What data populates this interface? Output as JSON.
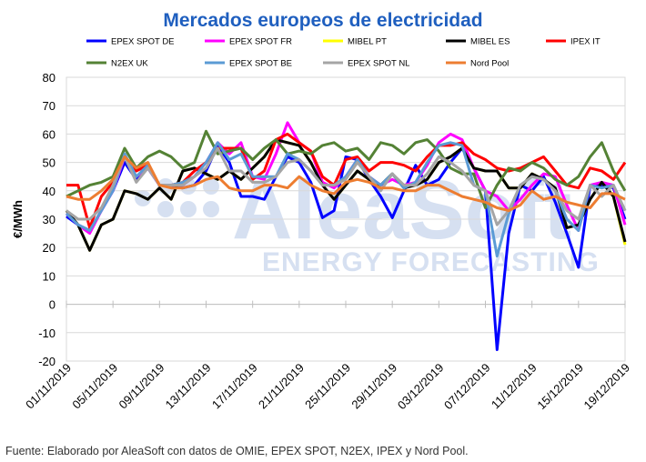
{
  "chart_data": {
    "type": "line",
    "title": "Mercados europeos de electricidad",
    "ylabel": "€/MWh",
    "xlabel": "",
    "ylim": [
      -20,
      80
    ],
    "yticks": [
      -20,
      -10,
      0,
      10,
      20,
      30,
      40,
      50,
      60,
      70,
      80
    ],
    "grid": true,
    "legend_position": "top",
    "x_start": "01/11/2019",
    "x_end": "19/12/2019",
    "x_tick_labels": [
      "01/11/2019",
      "05/11/2019",
      "09/11/2019",
      "13/11/2019",
      "17/11/2019",
      "21/11/2019",
      "25/11/2019",
      "29/11/2019",
      "03/12/2019",
      "07/12/2019",
      "11/12/2019",
      "15/12/2019",
      "19/12/2019"
    ],
    "series": [
      {
        "name": "EPEX SPOT DE",
        "color": "#0000ff",
        "values": [
          31,
          28,
          26,
          33,
          40,
          50,
          44,
          48,
          42,
          42,
          41,
          42,
          47,
          56,
          50,
          38,
          38,
          37,
          45,
          52,
          50,
          43,
          30.5,
          33,
          52,
          51,
          44,
          38,
          30.5,
          40,
          49,
          42,
          44,
          50,
          55,
          48,
          40,
          -16,
          25,
          42,
          40,
          45,
          36,
          25,
          13,
          42,
          42,
          41,
          30
        ]
      },
      {
        "name": "EPEX SPOT FR",
        "color": "#ff00ff",
        "values": [
          32,
          28,
          25,
          33,
          40,
          52,
          45,
          48,
          42,
          42,
          42,
          45,
          50,
          57,
          53,
          57,
          45,
          44,
          53,
          64,
          57,
          54,
          43,
          41,
          45,
          51,
          45,
          42,
          44,
          42,
          43,
          49,
          57,
          60,
          58,
          48,
          40,
          38,
          33,
          37,
          42,
          46,
          45,
          35,
          26,
          42,
          43,
          42,
          28
        ]
      },
      {
        "name": "MIBEL PT",
        "color": "#ffff00",
        "values": [
          33,
          28,
          19,
          28,
          30,
          40,
          39,
          37,
          41,
          37,
          47,
          48,
          46,
          44,
          47,
          44,
          48,
          52,
          58,
          57,
          56,
          50,
          42,
          37,
          42,
          47,
          44,
          42,
          46,
          41,
          42,
          44,
          50,
          52,
          55,
          48,
          47,
          47,
          41,
          41,
          46,
          44,
          41,
          27,
          28,
          37,
          43,
          38,
          21
        ]
      },
      {
        "name": "MIBEL ES",
        "color": "#000000",
        "values": [
          33,
          28,
          19,
          28,
          30,
          40,
          39,
          37,
          41,
          37,
          47,
          48,
          46,
          44,
          47,
          44,
          48,
          52,
          58,
          57,
          56,
          50,
          42,
          37,
          42,
          47,
          44,
          42,
          46,
          41,
          42,
          44,
          50,
          52,
          55,
          48,
          47,
          47,
          41,
          41,
          46,
          44,
          41,
          27,
          28,
          37,
          43,
          38,
          22
        ]
      },
      {
        "name": "IPEX IT",
        "color": "#ff0000",
        "values": [
          42,
          42,
          27,
          38,
          43,
          52,
          47,
          49,
          42,
          42,
          43,
          47,
          50,
          55,
          55,
          55,
          44,
          47,
          58,
          60,
          57,
          54,
          45,
          42,
          51,
          52,
          47,
          50,
          50,
          49,
          47,
          52,
          56,
          56,
          57,
          53,
          51,
          48,
          47,
          48,
          50,
          52,
          47,
          42,
          41,
          48,
          47,
          44,
          50
        ]
      },
      {
        "name": "N2EX UK",
        "color": "#548235",
        "values": [
          38,
          40,
          42,
          43,
          45,
          55,
          48,
          52,
          54,
          52,
          48,
          50,
          61,
          53,
          54,
          55,
          51,
          55,
          58,
          53,
          54,
          53,
          56,
          57,
          54,
          55,
          51,
          57,
          56,
          53,
          57,
          58,
          54,
          48,
          46,
          46,
          34,
          42,
          48,
          47,
          50,
          48,
          44,
          42,
          45,
          52,
          57,
          47,
          40
        ]
      },
      {
        "name": "EPEX SPOT BE",
        "color": "#5b9bd5",
        "values": [
          32,
          28,
          26,
          33,
          40,
          53,
          45,
          49,
          42,
          42,
          43,
          45,
          50,
          57,
          51,
          53,
          45,
          45,
          45,
          53,
          51,
          47,
          42,
          42,
          45,
          51,
          45,
          42,
          46,
          41,
          43,
          50,
          56,
          57,
          56,
          42,
          40,
          17,
          32,
          42,
          45,
          44,
          40,
          30,
          26,
          42,
          41,
          42,
          33
        ]
      },
      {
        "name": "EPEX SPOT NL",
        "color": "#a5a5a5",
        "values": [
          33,
          30,
          30,
          34,
          42,
          52,
          43,
          48,
          42,
          42,
          42,
          45,
          48,
          55,
          47,
          47,
          43,
          43,
          45,
          50,
          51,
          47,
          42,
          42,
          44,
          50,
          45,
          40,
          46,
          42,
          42,
          46,
          52,
          50,
          47,
          42,
          40,
          28,
          33,
          42,
          45,
          44,
          40,
          33,
          30,
          42,
          38,
          42,
          33
        ]
      },
      {
        "name": "Nord Pool",
        "color": "#ed7d31",
        "values": [
          38,
          37,
          37,
          40,
          44,
          52,
          48,
          50,
          42,
          41,
          41,
          42,
          44,
          45,
          41,
          40,
          40,
          42,
          42,
          41,
          45,
          42,
          40,
          39,
          43,
          44,
          43,
          41,
          41,
          40,
          40,
          42,
          42,
          40,
          38,
          37,
          36,
          34,
          33,
          35,
          40,
          37,
          38,
          36,
          35,
          34,
          39,
          39,
          37
        ]
      }
    ]
  },
  "watermark": {
    "brand": "AleaSoft",
    "tagline": "ENERGY FORECASTING"
  },
  "footer": "Fuente: Elaborado por AleaSoft con datos de OMIE, EPEX SPOT, N2EX, IPEX y Nord Pool."
}
